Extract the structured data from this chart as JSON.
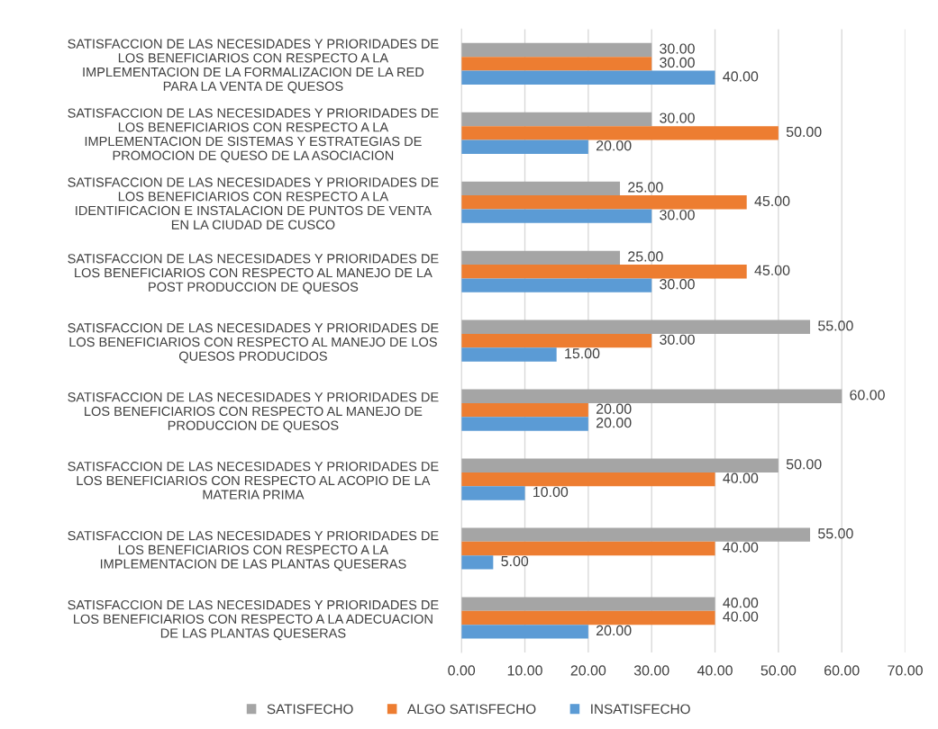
{
  "chart_data": {
    "type": "bar",
    "orientation": "horizontal",
    "categories": [
      "SATISFACCION DE LAS NECESIDADES Y PRIORIDADES DE\nLOS BENEFICIARIOS CON RESPECTO A LA\nIMPLEMENTACION DE LA FORMALIZACION DE LA RED\nPARA LA VENTA DE QUESOS",
      "SATISFACCION DE LAS NECESIDADES Y PRIORIDADES DE\nLOS BENEFICIARIOS CON RESPECTO A LA\nIMPLEMENTACION DE SISTEMAS Y ESTRATEGIAS DE\nPROMOCION DE QUESO DE LA ASOCIACION",
      "SATISFACCION DE LAS NECESIDADES Y PRIORIDADES DE\nLOS BENEFICIARIOS CON RESPECTO A LA\nIDENTIFICACION E INSTALACION DE PUNTOS DE VENTA\nEN LA CIUDAD DE CUSCO",
      "SATISFACCION DE LAS NECESIDADES Y PRIORIDADES DE\nLOS BENEFICIARIOS CON RESPECTO AL MANEJO DE LA\nPOST PRODUCCION DE QUESOS",
      "SATISFACCION DE LAS NECESIDADES Y PRIORIDADES DE\nLOS BENEFICIARIOS CON RESPECTO AL MANEJO DE LOS\nQUESOS PRODUCIDOS",
      "SATISFACCION DE LAS NECESIDADES Y PRIORIDADES DE\nLOS BENEFICIARIOS CON RESPECTO AL MANEJO DE\nPRODUCCION DE QUESOS",
      "SATISFACCION DE LAS NECESIDADES Y PRIORIDADES DE\nLOS BENEFICIARIOS CON RESPECTO AL ACOPIO DE LA\nMATERIA PRIMA",
      "SATISFACCION DE LAS NECESIDADES Y PRIORIDADES DE\nLOS BENEFICIARIOS CON RESPECTO A LA\nIMPLEMENTACION DE LAS PLANTAS QUESERAS",
      "SATISFACCION DE LAS NECESIDADES Y PRIORIDADES DE\nLOS BENEFICIARIOS CON RESPECTO A LA ADECUACION\nDE LAS PLANTAS QUESERAS"
    ],
    "series": [
      {
        "name": "SATISFECHO",
        "color": "#a5a5a5",
        "values": [
          30,
          30,
          25,
          25,
          55,
          60,
          50,
          55,
          40
        ],
        "value_labels": [
          "30.00",
          "30.00",
          "25.00",
          "25.00",
          "55.00",
          "60.00",
          "50.00",
          "55.00",
          "40.00"
        ]
      },
      {
        "name": "ALGO SATISFECHO",
        "color": "#ed7d31",
        "values": [
          30,
          50,
          45,
          45,
          30,
          20,
          40,
          40,
          40
        ],
        "value_labels": [
          "30.00",
          "50.00",
          "45.00",
          "45.00",
          "30.00",
          "20.00",
          "40.00",
          "40.00",
          "40.00"
        ]
      },
      {
        "name": "INSATISFECHO",
        "color": "#5b9bd5",
        "values": [
          40,
          20,
          30,
          30,
          15,
          20,
          10,
          5,
          20
        ],
        "value_labels": [
          "40.00",
          "20.00",
          "30.00",
          "30.00",
          "15.00",
          "20.00",
          "10.00",
          "5.00",
          "20.00"
        ]
      }
    ],
    "xlim": [
      0,
      70
    ],
    "xticks": [
      {
        "value": 0,
        "label": "0.00"
      },
      {
        "value": 10,
        "label": "10.00"
      },
      {
        "value": 20,
        "label": "20.00"
      },
      {
        "value": 30,
        "label": "30.00"
      },
      {
        "value": 40,
        "label": "40.00"
      },
      {
        "value": 50,
        "label": "50.00"
      },
      {
        "value": 60,
        "label": "60.00"
      },
      {
        "value": 70,
        "label": "70.00"
      }
    ],
    "grid": "x",
    "legend": "bottom"
  }
}
